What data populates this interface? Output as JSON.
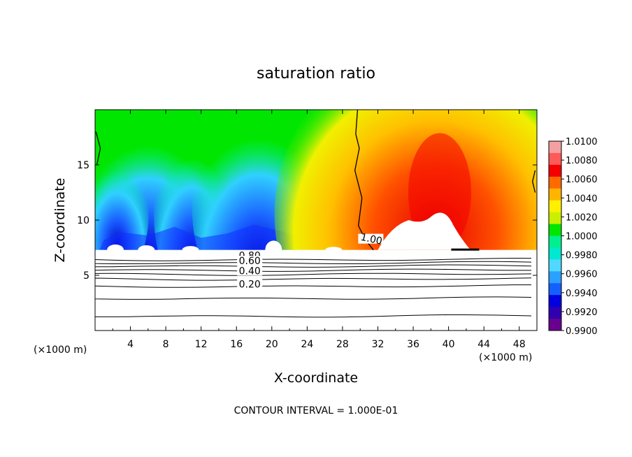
{
  "chart_data": {
    "type": "heatmap",
    "title": "saturation ratio",
    "xlabel": "X-coordinate",
    "ylabel": "Z-coordinate",
    "x_unit_left": "(×1000 m)",
    "x_unit_right": "(×1000 m)",
    "footer": "CONTOUR INTERVAL = 1.000E-01",
    "xlim": [
      0,
      50
    ],
    "ylim": [
      0,
      20
    ],
    "xticks": [
      "4",
      "8",
      "12",
      "16",
      "20",
      "24",
      "28",
      "32",
      "36",
      "40",
      "44",
      "48"
    ],
    "yticks": [
      "5",
      "10",
      "15"
    ],
    "colorbar": {
      "range": [
        0.99,
        1.01
      ],
      "labels": [
        "1.0100",
        "1.0080",
        "1.0060",
        "1.0040",
        "1.0020",
        "1.0000",
        "0.9980",
        "0.9960",
        "0.9940",
        "0.9920",
        "0.9900"
      ],
      "colors": [
        "#f4a0a0",
        "#ff5a5a",
        "#f40000",
        "#ff6a00",
        "#ffb400",
        "#fff000",
        "#c8f000",
        "#00e600",
        "#00f090",
        "#00e8d0",
        "#50d8ff",
        "#2aa0ff",
        "#1460ff",
        "#0000e0",
        "#3000b0",
        "#6a0090"
      ]
    },
    "cloud_base_height": 7.3,
    "contour_labels": [
      "1.00",
      "0.80",
      "0.60",
      "0.40",
      "0.20"
    ],
    "contour_levels": [
      0.2,
      0.4,
      0.6,
      0.8,
      1.0
    ]
  }
}
